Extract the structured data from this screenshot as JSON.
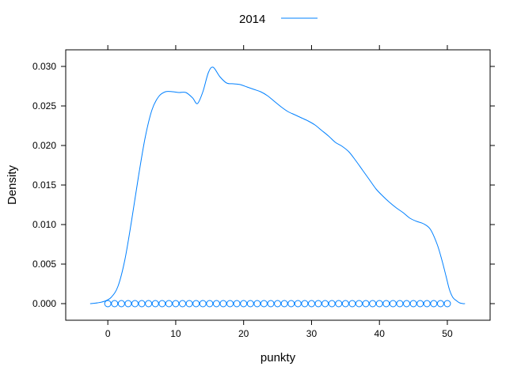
{
  "chart_data": {
    "type": "line",
    "xlabel": "punkty",
    "ylabel": "Density",
    "xlim": [
      -6.2,
      56.3
    ],
    "ylim": [
      -0.0021,
      0.0321
    ],
    "x_ticks": [
      0,
      10,
      20,
      30,
      40,
      50
    ],
    "x_tick_labels": [
      "0",
      "10",
      "20",
      "30",
      "40",
      "50"
    ],
    "y_ticks": [
      0.0,
      0.005,
      0.01,
      0.015,
      0.02,
      0.025,
      0.03
    ],
    "y_tick_labels": [
      "0.000",
      "0.005",
      "0.010",
      "0.015",
      "0.020",
      "0.025",
      "0.030"
    ],
    "legend": {
      "position": "top",
      "entries": [
        "2014"
      ]
    },
    "colors": {
      "series": "#0080ff"
    },
    "series": [
      {
        "name": "2014",
        "x": [
          -2.6,
          -1.5,
          -0.5,
          0.5,
          1.5,
          2.5,
          3.5,
          4.5,
          5.5,
          6.5,
          7.5,
          8.5,
          9.5,
          10.5,
          11.5,
          12.5,
          13.2,
          14.0,
          14.8,
          15.5,
          16.5,
          17.5,
          18.5,
          19.5,
          20.5,
          21.5,
          22.5,
          23.5,
          24.5,
          25.5,
          26.5,
          27.5,
          28.5,
          29.5,
          30.5,
          31.5,
          32.5,
          33.5,
          34.5,
          35.5,
          36.5,
          37.5,
          38.5,
          39.5,
          40.5,
          41.5,
          42.5,
          43.5,
          44.5,
          45.5,
          46.5,
          47.5,
          48.5,
          49.2,
          49.8,
          50.3,
          50.8,
          51.3,
          51.8,
          52.3,
          52.6
        ],
        "y": [
          0.0,
          0.0001,
          0.0003,
          0.0008,
          0.0022,
          0.0055,
          0.0105,
          0.016,
          0.021,
          0.0245,
          0.0262,
          0.0268,
          0.0268,
          0.0267,
          0.0267,
          0.026,
          0.0253,
          0.0268,
          0.0292,
          0.0299,
          0.0287,
          0.0279,
          0.0278,
          0.0277,
          0.0274,
          0.0271,
          0.0268,
          0.0263,
          0.0256,
          0.0249,
          0.0243,
          0.0239,
          0.0235,
          0.0231,
          0.0226,
          0.0219,
          0.0212,
          0.0204,
          0.0199,
          0.0192,
          0.0181,
          0.0169,
          0.0157,
          0.0145,
          0.0136,
          0.0128,
          0.0121,
          0.0115,
          0.0108,
          0.0104,
          0.0101,
          0.0094,
          0.0075,
          0.0055,
          0.0035,
          0.0018,
          0.0008,
          0.0004,
          0.0001,
          0.0,
          0.0
        ]
      }
    ],
    "rug": {
      "y": 0.0,
      "x": [
        0,
        1,
        2,
        3,
        4,
        5,
        6,
        7,
        8,
        9,
        10,
        11,
        12,
        13,
        14,
        15,
        16,
        17,
        18,
        19,
        20,
        21,
        22,
        23,
        24,
        25,
        26,
        27,
        28,
        29,
        30,
        31,
        32,
        33,
        34,
        35,
        36,
        37,
        38,
        39,
        40,
        41,
        42,
        43,
        44,
        45,
        46,
        47,
        48,
        49,
        50
      ]
    }
  }
}
